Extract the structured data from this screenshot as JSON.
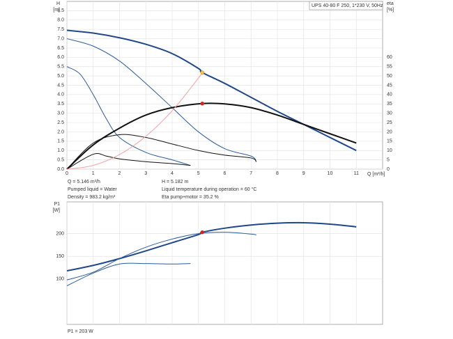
{
  "chart_data": [
    {
      "type": "line",
      "title": "UPS 40-80 F 250, 1*230 V, 50Hz",
      "ylabel": [
        "H",
        "[m]"
      ],
      "y2label": [
        "eta",
        "[%]"
      ],
      "xlabel": "Q [m³/h]",
      "xlim": [
        0,
        12
      ],
      "ylim": [
        0,
        9
      ],
      "y2lim": [
        0,
        90
      ],
      "grid": true,
      "xticks": [
        0,
        1,
        2,
        3,
        4,
        5,
        6,
        7,
        8,
        9,
        10,
        11
      ],
      "yticks": [
        {
          "value": 0,
          "label": "0.0"
        },
        0.5,
        {
          "value": 1,
          "label": "1.0"
        },
        1.5,
        {
          "value": 2,
          "label": "2.0"
        },
        2.5,
        {
          "value": 3,
          "label": "3.0"
        },
        3.5,
        {
          "value": 4,
          "label": "4.0"
        },
        4.5,
        {
          "value": 5,
          "label": "5.0"
        },
        5.5,
        {
          "value": 6,
          "label": "6.0"
        },
        6.5,
        {
          "value": 7,
          "label": "7.0"
        },
        7.5,
        {
          "value": 8,
          "label": "8.0"
        },
        8.5
      ],
      "y2ticks": [
        0,
        5,
        10,
        15,
        20,
        25,
        30,
        35,
        40,
        45,
        50,
        55,
        60
      ],
      "series": [
        {
          "color": "#1f4788",
          "width": 2,
          "x": [
            0,
            1,
            2,
            3,
            4,
            5,
            5.146,
            6,
            7,
            8,
            9,
            10,
            11
          ],
          "values": [
            7.45,
            7.3,
            7.05,
            6.7,
            6.2,
            5.4,
            5.182,
            4.6,
            3.85,
            3.1,
            2.4,
            1.7,
            1.0
          ]
        },
        {
          "color": "#2a5a9a",
          "width": 1,
          "x": [
            0,
            1,
            2,
            3,
            4,
            5,
            6,
            7,
            7.2
          ],
          "values": [
            7.0,
            6.6,
            5.8,
            4.6,
            3.3,
            2.0,
            1.1,
            0.7,
            0.4
          ]
        },
        {
          "color": "#2a5a9a",
          "width": 1,
          "x": [
            0,
            0.5,
            1,
            1.5,
            2,
            3,
            4,
            4.7
          ],
          "values": [
            5.5,
            5.1,
            4.0,
            2.7,
            1.7,
            0.9,
            0.5,
            0.2
          ]
        },
        {
          "color": "#111111",
          "width": 2,
          "axis": "y2",
          "x": [
            0,
            1,
            2,
            3,
            4,
            5.146,
            6,
            7,
            8,
            9,
            10,
            11
          ],
          "values": [
            0,
            13,
            22,
            29,
            33,
            35.2,
            35,
            33,
            29,
            24,
            19,
            14
          ]
        },
        {
          "color": "#111111",
          "width": 1,
          "axis": "y2",
          "x": [
            0,
            1,
            2,
            3,
            4,
            5,
            6,
            7,
            7.2
          ],
          "values": [
            0,
            14,
            18.5,
            17,
            13.5,
            10,
            7.5,
            6,
            4
          ]
        },
        {
          "color": "#111111",
          "width": 1,
          "axis": "y2",
          "x": [
            0,
            1,
            1.5,
            2,
            3,
            4,
            4.7
          ],
          "values": [
            0,
            8,
            7,
            5.5,
            4,
            3,
            2
          ]
        },
        {
          "color": "#f4a0a0",
          "width": 1,
          "x": [
            0,
            1,
            2,
            3,
            4,
            5,
            5.146
          ],
          "values": [
            0,
            0.2,
            0.78,
            1.76,
            3.13,
            4.89,
            5.182
          ]
        }
      ],
      "points": [
        {
          "x": 5.146,
          "y": 5.182,
          "color": "#f5c542"
        },
        {
          "x": 5.146,
          "y": 35.2,
          "axis": "y2",
          "color": "#e02020"
        }
      ],
      "annotations": [
        "Q = 5.146 m³/h",
        "H = 5.182 m",
        "Pumped liquid = Water",
        "Liquid temperature during operation = 60 °C",
        "Density = 983.2 kg/m³",
        "Eta pump+motor = 35.2 %"
      ]
    },
    {
      "type": "line",
      "ylabel": [
        "P1",
        "[W]"
      ],
      "xlim": [
        0,
        12
      ],
      "ylim": [
        0,
        270
      ],
      "grid": true,
      "xtick_labels": false,
      "xticks": [
        0,
        1,
        2,
        3,
        4,
        5,
        6,
        7,
        8,
        9,
        10,
        11
      ],
      "yticks": [
        100,
        150,
        200
      ],
      "series": [
        {
          "color": "#1f4788",
          "width": 2,
          "x": [
            0,
            1,
            2,
            3,
            4,
            5,
            5.146,
            6,
            7,
            8,
            9,
            10,
            11
          ],
          "values": [
            118,
            130,
            145,
            162,
            180,
            198,
            203,
            212,
            219,
            223,
            224,
            221,
            215
          ]
        },
        {
          "color": "#2a5a9a",
          "width": 1,
          "x": [
            0,
            1,
            2,
            3,
            4,
            5,
            6,
            7,
            7.2
          ],
          "values": [
            98,
            115,
            145,
            170,
            188,
            200,
            203,
            199,
            197
          ]
        },
        {
          "color": "#2a5a9a",
          "width": 1,
          "x": [
            0,
            1,
            2,
            3,
            4,
            4.7
          ],
          "values": [
            85,
            113,
            133,
            134,
            133,
            134
          ]
        }
      ],
      "points": [
        {
          "x": 5.146,
          "y": 203,
          "color": "#e02020"
        }
      ],
      "annotations": [
        "P1 = 203 W"
      ]
    }
  ]
}
